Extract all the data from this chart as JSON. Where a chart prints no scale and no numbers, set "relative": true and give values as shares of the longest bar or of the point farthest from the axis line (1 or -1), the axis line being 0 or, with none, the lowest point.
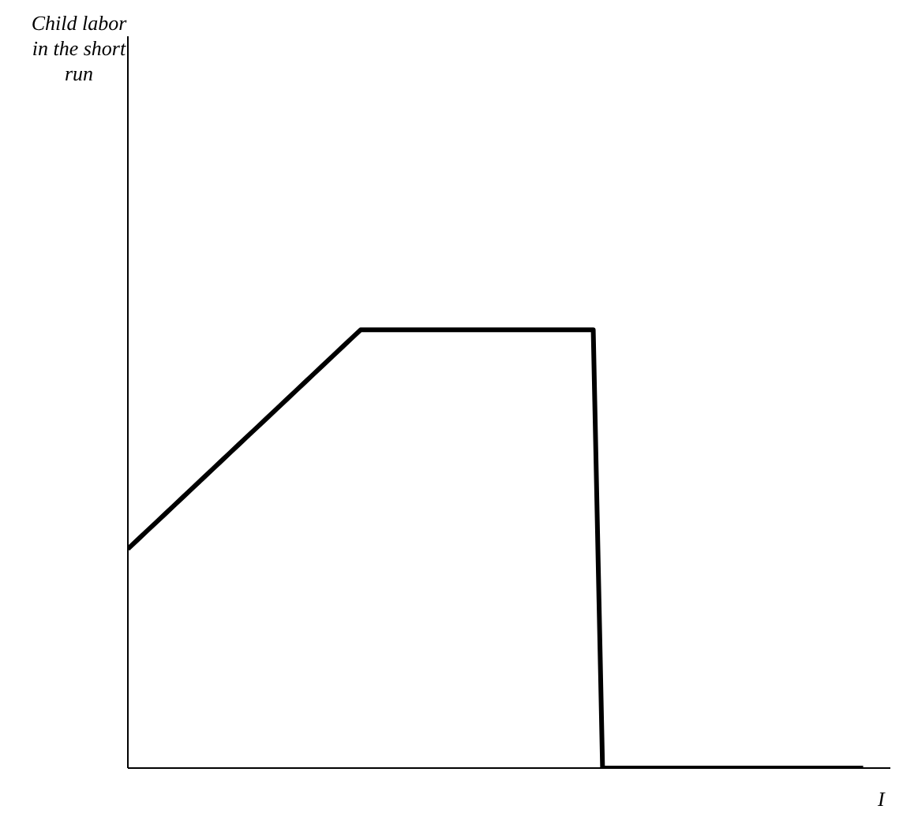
{
  "chart_data": {
    "type": "line",
    "annotations": [
      "Child labor in the short run"
    ],
    "xlabel": "I",
    "relative": true,
    "marker": "none",
    "line_style": "solid",
    "categories": [
      null,
      null,
      null,
      null,
      null,
      null,
      null,
      null,
      null,
      null,
      null,
      null,
      null,
      null,
      null,
      null,
      null,
      null,
      null,
      null,
      null,
      null,
      null,
      null,
      null,
      null,
      null,
      null,
      null,
      null,
      null,
      null,
      null,
      null,
      null,
      null,
      null,
      null,
      null,
      null,
      null,
      null,
      null,
      null,
      null,
      null,
      null,
      null,
      null,
      null,
      null,
      null,
      null,
      null,
      null,
      null,
      null,
      null,
      null,
      null,
      null,
      null,
      null,
      null,
      null,
      null,
      null,
      null,
      null,
      null,
      null,
      null,
      null,
      null,
      null,
      null,
      null,
      null,
      null,
      null
    ],
    "series": [
      {
        "color": "#000000",
        "values": [
          0.5,
          0.52,
          0.54,
          0.56,
          0.58,
          0.6,
          0.62,
          0.64,
          0.66,
          0.68,
          0.7,
          0.72,
          0.74,
          0.76,
          0.78,
          0.8,
          0.82,
          0.84,
          0.86,
          0.88,
          0.9,
          0.92,
          0.94,
          0.96,
          0.98,
          1,
          1,
          1,
          1,
          1,
          1,
          1,
          1,
          1,
          1,
          1,
          1,
          1,
          1,
          1,
          1,
          1,
          1,
          1,
          1,
          1,
          1,
          1,
          1,
          1,
          1,
          0,
          0,
          0,
          0,
          0,
          0,
          0,
          0,
          0,
          0,
          0,
          0,
          0,
          0,
          0,
          0,
          0,
          0,
          0,
          0,
          0,
          0,
          0,
          0,
          0,
          0,
          0,
          0,
          0
        ]
      }
    ]
  }
}
